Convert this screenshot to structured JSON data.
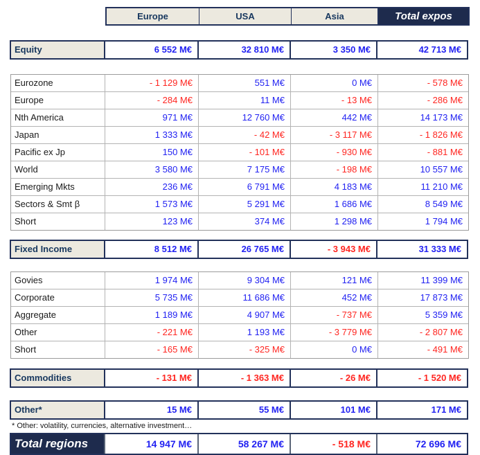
{
  "header": {
    "columns": [
      {
        "label": "Europe",
        "highlight": false
      },
      {
        "label": "USA",
        "highlight": false
      },
      {
        "label": "Asia",
        "highlight": false
      },
      {
        "label": "Total expos",
        "highlight": true
      }
    ]
  },
  "colors": {
    "navy_background": "#1e2b4d",
    "navy_border": "#22315a",
    "navy_label_text": "#17375e",
    "beige_cell": "#ece9df",
    "positive_value": "#2222f2",
    "negative_value": "#ff2621",
    "detail_border": "#9b9b9b"
  },
  "body": [
    {
      "kind": "section",
      "name": "equity",
      "label": "Equity",
      "values": [
        "6 552 M€",
        "32 810 M€",
        "3 350 M€",
        "42 713 M€"
      ]
    },
    {
      "kind": "details",
      "name": "equity",
      "rows": [
        {
          "label": "Eurozone",
          "values": [
            "- 1 129 M€",
            "551 M€",
            "0 M€",
            "- 578 M€"
          ]
        },
        {
          "label": "Europe",
          "values": [
            "- 284 M€",
            "11 M€",
            "- 13 M€",
            "- 286 M€"
          ]
        },
        {
          "label": "Nth America",
          "values": [
            "971 M€",
            "12 760 M€",
            "442 M€",
            "14 173 M€"
          ]
        },
        {
          "label": "Japan",
          "values": [
            "1 333 M€",
            "- 42 M€",
            "- 3 117 M€",
            "- 1 826 M€"
          ]
        },
        {
          "label": "Pacific ex Jp",
          "values": [
            "150 M€",
            "- 101 M€",
            "- 930 M€",
            "- 881 M€"
          ]
        },
        {
          "label": "World",
          "values": [
            "3 580 M€",
            "7 175 M€",
            "- 198 M€",
            "10 557 M€"
          ]
        },
        {
          "label": "Emerging Mkts",
          "values": [
            "236 M€",
            "6 791 M€",
            "4 183 M€",
            "11 210 M€"
          ]
        },
        {
          "label": "Sectors & Smt β",
          "values": [
            "1 573 M€",
            "5 291 M€",
            "1 686 M€",
            "8 549 M€"
          ]
        },
        {
          "label": "Short",
          "values": [
            "123 M€",
            "374 M€",
            "1 298 M€",
            "1 794 M€"
          ]
        }
      ]
    },
    {
      "kind": "section",
      "name": "fixed-income",
      "label": "Fixed Income",
      "values": [
        "8 512 M€",
        "26 765 M€",
        "- 3 943 M€",
        "31 333 M€"
      ]
    },
    {
      "kind": "details",
      "name": "fixed-income",
      "rows": [
        {
          "label": "Govies",
          "values": [
            "1 974 M€",
            "9 304 M€",
            "121 M€",
            "11 399 M€"
          ]
        },
        {
          "label": "Corporate",
          "values": [
            "5 735 M€",
            "11 686 M€",
            "452 M€",
            "17 873 M€"
          ]
        },
        {
          "label": "Aggregate",
          "values": [
            "1 189 M€",
            "4 907 M€",
            "- 737 M€",
            "5 359 M€"
          ]
        },
        {
          "label": "Other",
          "values": [
            "- 221 M€",
            "1 193 M€",
            "- 3 779 M€",
            "- 2 807 M€"
          ]
        },
        {
          "label": "Short",
          "values": [
            "- 165 M€",
            "- 325 M€",
            "0 M€",
            "- 491 M€"
          ]
        }
      ]
    },
    {
      "kind": "section",
      "name": "commodities",
      "label": "Commodities",
      "values": [
        "- 131 M€",
        "- 1 363 M€",
        "- 26 M€",
        "- 1 520 M€"
      ]
    },
    {
      "kind": "section",
      "name": "other",
      "label": "Other*",
      "values": [
        "15 M€",
        "55 M€",
        "101 M€",
        "171 M€"
      ]
    },
    {
      "kind": "footnote",
      "name": "footnote",
      "text": "* Other: volatility, currencies, alternative investment…"
    },
    {
      "kind": "total",
      "name": "total-regions",
      "label": "Total regions",
      "values": [
        "14 947 M€",
        "58 267 M€",
        "- 518 M€",
        "72 696 M€"
      ]
    }
  ]
}
